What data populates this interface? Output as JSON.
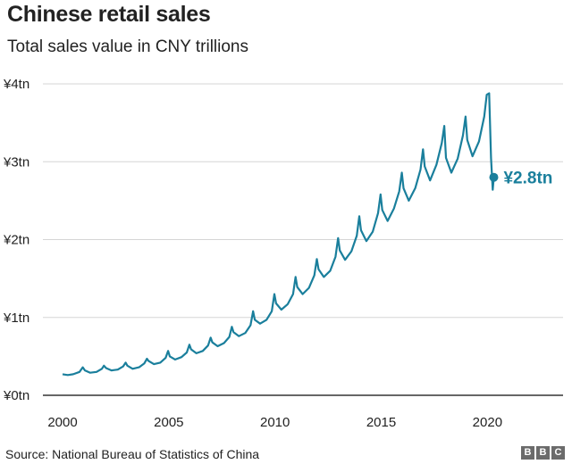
{
  "chart_data": {
    "type": "line",
    "title": "Chinese retail sales",
    "subtitle": "Total sales value in CNY trillions",
    "source": "Source: National Bureau of Statistics of China",
    "brand": "BBC",
    "xlim": [
      2000,
      2020.7
    ],
    "ylim": [
      0,
      4
    ],
    "x_ticks": [
      2000,
      2005,
      2010,
      2015,
      2020
    ],
    "y_ticks": [
      {
        "value": 0,
        "label": "¥0tn"
      },
      {
        "value": 1,
        "label": "¥1tn"
      },
      {
        "value": 2,
        "label": "¥2tn"
      },
      {
        "value": 3,
        "label": "¥3tn"
      },
      {
        "value": 4,
        "label": "¥4tn"
      }
    ],
    "grid": true,
    "line_color": "#1a7f9c",
    "end_annotation": {
      "x": 2020.3,
      "y": 2.8,
      "label": "¥2.8tn"
    },
    "series": [
      {
        "values": [
          [
            2000.0,
            0.27
          ],
          [
            2000.25,
            0.26
          ],
          [
            2000.5,
            0.27
          ],
          [
            2000.8,
            0.3
          ],
          [
            2000.95,
            0.36
          ],
          [
            2001.05,
            0.32
          ],
          [
            2001.3,
            0.29
          ],
          [
            2001.6,
            0.3
          ],
          [
            2001.85,
            0.34
          ],
          [
            2001.95,
            0.38
          ],
          [
            2002.05,
            0.35
          ],
          [
            2002.3,
            0.32
          ],
          [
            2002.6,
            0.33
          ],
          [
            2002.85,
            0.37
          ],
          [
            2002.97,
            0.42
          ],
          [
            2003.05,
            0.38
          ],
          [
            2003.3,
            0.34
          ],
          [
            2003.6,
            0.36
          ],
          [
            2003.85,
            0.41
          ],
          [
            2003.97,
            0.47
          ],
          [
            2004.05,
            0.44
          ],
          [
            2004.3,
            0.4
          ],
          [
            2004.6,
            0.42
          ],
          [
            2004.85,
            0.48
          ],
          [
            2004.97,
            0.57
          ],
          [
            2005.05,
            0.5
          ],
          [
            2005.3,
            0.46
          ],
          [
            2005.6,
            0.49
          ],
          [
            2005.85,
            0.55
          ],
          [
            2005.97,
            0.65
          ],
          [
            2006.05,
            0.59
          ],
          [
            2006.3,
            0.54
          ],
          [
            2006.6,
            0.57
          ],
          [
            2006.85,
            0.64
          ],
          [
            2006.97,
            0.74
          ],
          [
            2007.05,
            0.68
          ],
          [
            2007.3,
            0.63
          ],
          [
            2007.6,
            0.67
          ],
          [
            2007.85,
            0.75
          ],
          [
            2007.97,
            0.88
          ],
          [
            2008.05,
            0.81
          ],
          [
            2008.3,
            0.76
          ],
          [
            2008.6,
            0.8
          ],
          [
            2008.85,
            0.9
          ],
          [
            2008.97,
            1.08
          ],
          [
            2009.05,
            0.97
          ],
          [
            2009.3,
            0.92
          ],
          [
            2009.6,
            0.97
          ],
          [
            2009.85,
            1.08
          ],
          [
            2009.97,
            1.3
          ],
          [
            2010.05,
            1.18
          ],
          [
            2010.3,
            1.1
          ],
          [
            2010.6,
            1.17
          ],
          [
            2010.85,
            1.3
          ],
          [
            2010.97,
            1.52
          ],
          [
            2011.05,
            1.39
          ],
          [
            2011.3,
            1.3
          ],
          [
            2011.6,
            1.38
          ],
          [
            2011.85,
            1.54
          ],
          [
            2011.97,
            1.75
          ],
          [
            2012.05,
            1.62
          ],
          [
            2012.3,
            1.52
          ],
          [
            2012.6,
            1.6
          ],
          [
            2012.85,
            1.78
          ],
          [
            2012.97,
            2.02
          ],
          [
            2013.05,
            1.86
          ],
          [
            2013.3,
            1.74
          ],
          [
            2013.6,
            1.85
          ],
          [
            2013.85,
            2.05
          ],
          [
            2013.97,
            2.3
          ],
          [
            2014.05,
            2.12
          ],
          [
            2014.3,
            1.98
          ],
          [
            2014.6,
            2.1
          ],
          [
            2014.85,
            2.34
          ],
          [
            2014.97,
            2.58
          ],
          [
            2015.05,
            2.38
          ],
          [
            2015.3,
            2.24
          ],
          [
            2015.6,
            2.4
          ],
          [
            2015.85,
            2.62
          ],
          [
            2015.97,
            2.86
          ],
          [
            2016.05,
            2.66
          ],
          [
            2016.3,
            2.5
          ],
          [
            2016.6,
            2.66
          ],
          [
            2016.85,
            2.9
          ],
          [
            2016.97,
            3.16
          ],
          [
            2017.05,
            2.94
          ],
          [
            2017.3,
            2.76
          ],
          [
            2017.6,
            2.96
          ],
          [
            2017.85,
            3.24
          ],
          [
            2017.97,
            3.46
          ],
          [
            2018.05,
            3.05
          ],
          [
            2018.3,
            2.86
          ],
          [
            2018.6,
            3.04
          ],
          [
            2018.85,
            3.34
          ],
          [
            2018.97,
            3.58
          ],
          [
            2019.05,
            3.28
          ],
          [
            2019.3,
            3.07
          ],
          [
            2019.6,
            3.26
          ],
          [
            2019.85,
            3.58
          ],
          [
            2019.97,
            3.86
          ],
          [
            2020.08,
            3.88
          ],
          [
            2020.17,
            3.05
          ],
          [
            2020.25,
            2.64
          ],
          [
            2020.3,
            2.8
          ]
        ]
      }
    ]
  }
}
